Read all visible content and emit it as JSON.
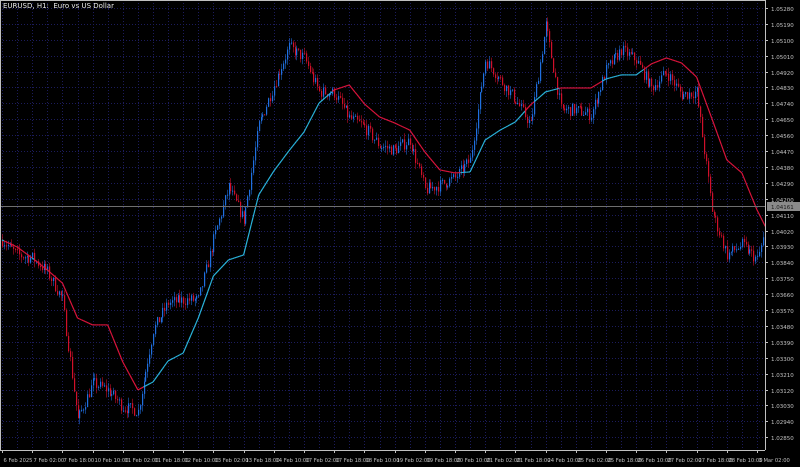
{
  "header": {
    "title": "EURUSD, H1:  Euro vs US Dollar"
  },
  "colors": {
    "background": "#000000",
    "grid": "#1c1c5c",
    "axis": "#c0c0c0",
    "bull": "#1f6fe0",
    "bear": "#d0102a",
    "line_up": "#2ab4dc",
    "line_down": "#dc143c",
    "current_line": "#6e6e6e"
  },
  "chart_data": {
    "type": "candlestick",
    "symbol": "EURUSD",
    "timeframe": "H1",
    "ylim": [
      1.02778,
      1.05325
    ],
    "grid": true,
    "price_ticks": [
      "1.05280",
      "1.05190",
      "1.05100",
      "1.05010",
      "1.04920",
      "1.04830",
      "1.04740",
      "1.04650",
      "1.04560",
      "1.04470",
      "1.04380",
      "1.04290",
      "1.04200",
      "1.04110",
      "1.04020",
      "1.03930",
      "1.03840",
      "1.03750",
      "1.03660",
      "1.03570",
      "1.03480",
      "1.03390",
      "1.03300",
      "1.03210",
      "1.03120",
      "1.03030",
      "1.02940",
      "1.02850"
    ],
    "time_ticks": [
      "6 Feb 2025",
      "7 Feb 02:00",
      "7 Feb 18:00",
      "10 Feb 10:00",
      "11 Feb 02:00",
      "11 Feb 18:00",
      "12 Feb 10:00",
      "13 Feb 02:00",
      "13 Feb 18:00",
      "14 Feb 10:00",
      "17 Feb 02:00",
      "17 Feb 18:00",
      "18 Feb 10:00",
      "19 Feb 02:00",
      "19 Feb 18:00",
      "20 Feb 10:00",
      "21 Feb 02:00",
      "21 Feb 18:00",
      "24 Feb 10:00",
      "25 Feb 02:00",
      "25 Feb 18:00",
      "26 Feb 10:00",
      "27 Feb 02:00",
      "27 Feb 18:00",
      "28 Feb 10:00",
      "3 Mar 02:00"
    ],
    "current_price": "1.04161",
    "close_approx": [
      1.03967,
      1.03882,
      1.03865,
      1.03786,
      1.03627,
      1.02948,
      1.03157,
      1.03118,
      1.03022,
      1.02999,
      1.03457,
      1.0361,
      1.03627,
      1.03627,
      1.03967,
      1.04267,
      1.0408,
      1.04618,
      1.04844,
      1.05059,
      1.04997,
      1.04805,
      1.04799,
      1.04657,
      1.04606,
      1.04499,
      1.04476,
      1.04533,
      1.0425,
      1.04278,
      1.04318,
      1.0442,
      1.04986,
      1.04872,
      1.04759,
      1.04618,
      1.05184,
      1.04703,
      1.04703,
      1.04674,
      1.04929,
      1.05042,
      1.04986,
      1.04827,
      1.04918,
      1.04788,
      1.04805,
      1.04137,
      1.03882,
      1.03939,
      1.03854,
      1.04161
    ],
    "indicator_line_approx": [
      1.03967,
      1.03927,
      1.03865,
      1.03797,
      1.03723,
      1.03525,
      1.03486,
      1.03486,
      1.03276,
      1.03118,
      1.03163,
      1.03282,
      1.03327,
      1.03525,
      1.03763,
      1.03854,
      1.03882,
      1.04222,
      1.04357,
      1.04471,
      1.04578,
      1.04742,
      1.04816,
      1.04844,
      1.04737,
      1.04663,
      1.04629,
      1.04589,
      1.04465,
      1.04363,
      1.04346,
      1.04352,
      1.04533,
      1.04589,
      1.04635,
      1.04731,
      1.04805,
      1.04827,
      1.04827,
      1.04827,
      1.04878,
      1.04901,
      1.04901,
      1.04963,
      1.04997,
      1.04969,
      1.04889,
      1.04657,
      1.0442,
      1.04346,
      1.04137,
      1.03967
    ]
  }
}
